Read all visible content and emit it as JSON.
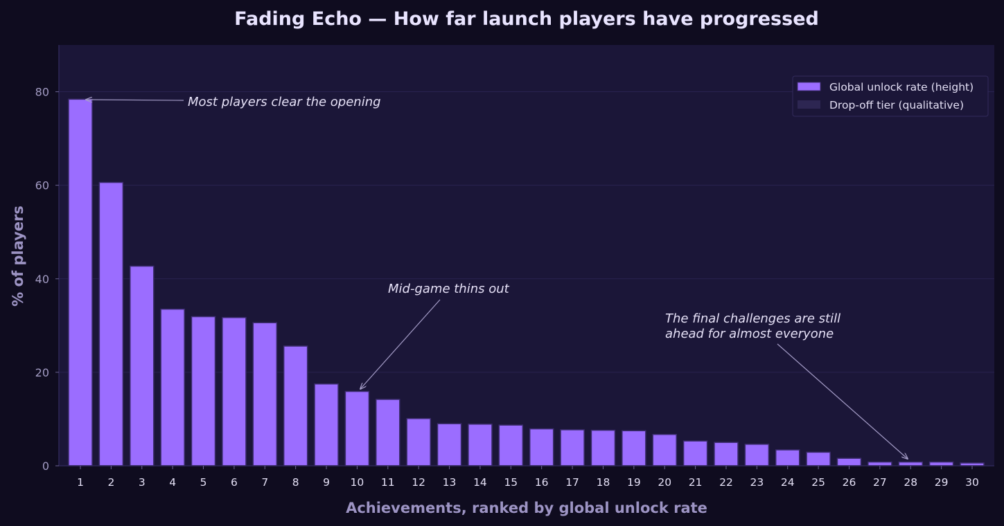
{
  "chart_data": {
    "type": "bar",
    "title": "Fading Echo — How far launch players have progressed",
    "xlabel": "Achievements, ranked by global unlock rate",
    "ylabel": "% of players",
    "ylim": [
      0,
      90
    ],
    "yticks": [
      "0",
      "20",
      "40",
      "60",
      "80"
    ],
    "grid": true,
    "legend_position": "top-right",
    "categories": [
      "1",
      "2",
      "3",
      "4",
      "5",
      "6",
      "7",
      "8",
      "9",
      "10",
      "11",
      "12",
      "13",
      "14",
      "15",
      "16",
      "17",
      "18",
      "19",
      "20",
      "21",
      "22",
      "23",
      "24",
      "25",
      "26",
      "27",
      "28",
      "29",
      "30"
    ],
    "series": [
      {
        "name": "Global unlock rate (height)",
        "values": [
          78.4,
          60.6,
          42.7,
          33.5,
          31.9,
          31.7,
          30.6,
          25.6,
          17.5,
          15.9,
          14.2,
          10.1,
          9.0,
          8.9,
          8.7,
          7.9,
          7.7,
          7.6,
          7.5,
          6.7,
          5.3,
          5.0,
          4.6,
          3.4,
          2.9,
          1.6,
          0.8,
          0.8,
          0.8,
          0.6
        ]
      }
    ],
    "legend": [
      "Global unlock rate (height)",
      "Drop-off tier (qualitative)"
    ],
    "annotations": [
      {
        "lines": [
          "Most players clear the opening"
        ],
        "target_category": "1"
      },
      {
        "lines": [
          "Mid-game thins out"
        ],
        "target_category": "10"
      },
      {
        "lines": [
          "The final challenges are still",
          "ahead for almost everyone"
        ],
        "target_category": "28"
      }
    ],
    "colors": {
      "bar": "#9b6dff",
      "bar_edge": "#3c2d6e",
      "tier_swatch": "#2d2652",
      "plot_bg": "#1b1638",
      "page_bg": "#0f0c1f",
      "grid": "#2a2350",
      "arrow": "#a59dc8"
    }
  }
}
